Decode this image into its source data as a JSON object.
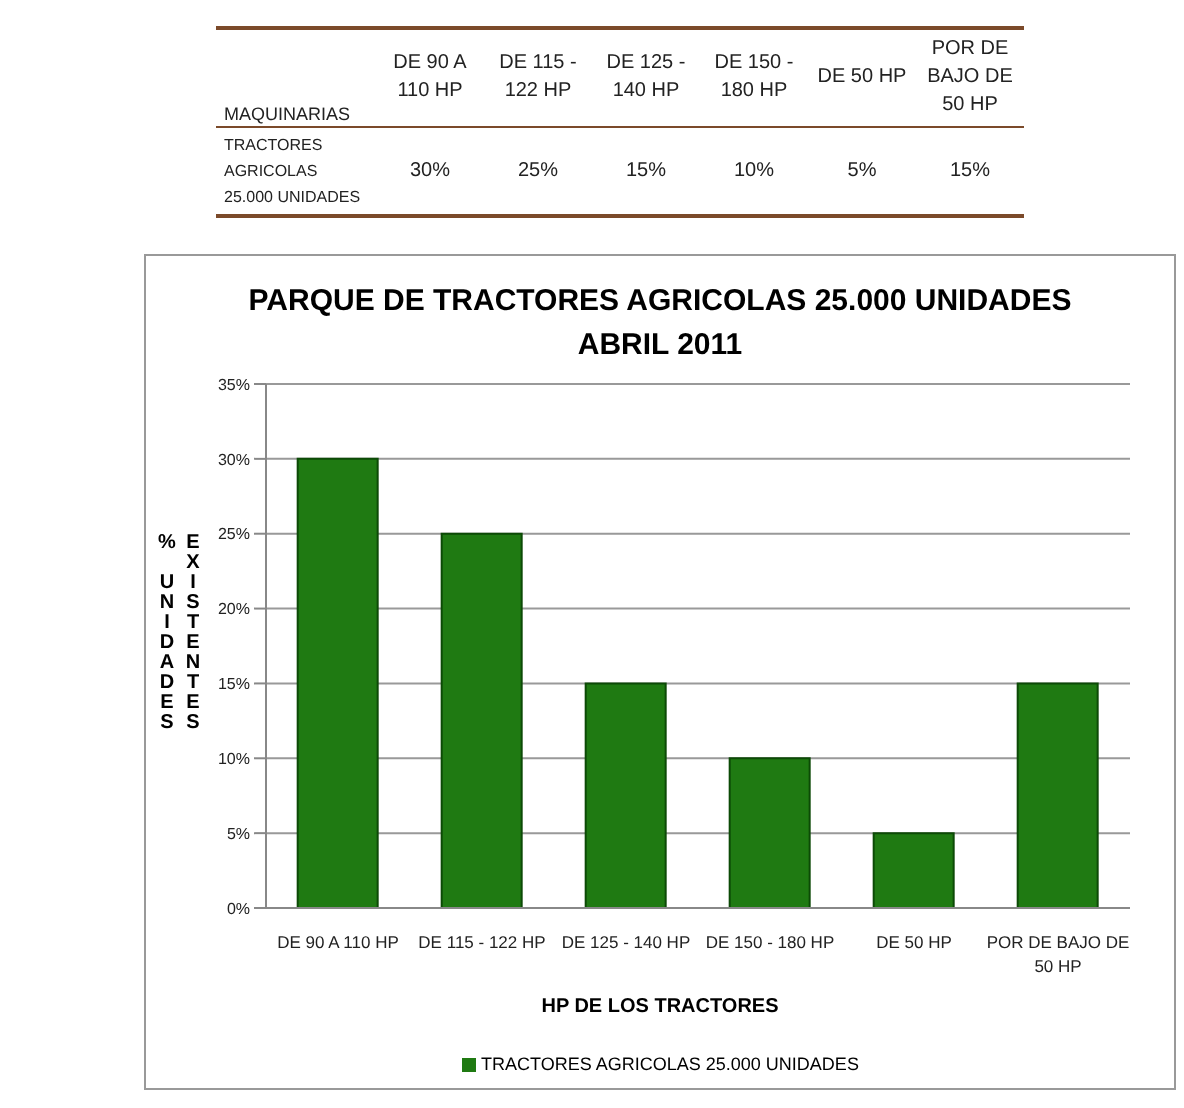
{
  "chart_data": {
    "type": "bar",
    "title": "PARQUE DE TRACTORES AGRICOLAS 25.000 UNIDADES",
    "subtitle": "ABRIL 2011",
    "xlabel": "HP DE LOS TRACTORES",
    "ylabel": "% UNIDADES EXISTENTES",
    "categories": [
      "DE 90 A 110 HP",
      "DE 115 - 122 HP",
      "DE 125 - 140 HP",
      "DE 150 - 180 HP",
      "DE 50 HP",
      "POR DE BAJO DE 50 HP"
    ],
    "series": [
      {
        "name": "TRACTORES AGRICOLAS 25.000 UNIDADES",
        "color": "#1f7a12",
        "values": [
          30,
          25,
          15,
          10,
          5,
          15
        ]
      }
    ],
    "annotations": [
      "MAQUINARIAS",
      "TRACTORES AGRICOLAS 25.000 UNIDADES",
      "30%",
      "25%",
      "15%",
      "10%",
      "5%",
      "15%"
    ],
    "ylim": [
      0,
      35
    ],
    "yticks": [
      {
        "value": 0,
        "label": "0%"
      },
      {
        "value": 5,
        "label": "5%"
      },
      {
        "value": 10,
        "label": "10%"
      },
      {
        "value": 15,
        "label": "15%"
      },
      {
        "value": 20,
        "label": "20%"
      },
      {
        "value": 25,
        "label": "25%"
      },
      {
        "value": 30,
        "label": "30%"
      },
      {
        "value": 35,
        "label": "35%"
      }
    ],
    "grid": "y",
    "legend": "bottom"
  }
}
